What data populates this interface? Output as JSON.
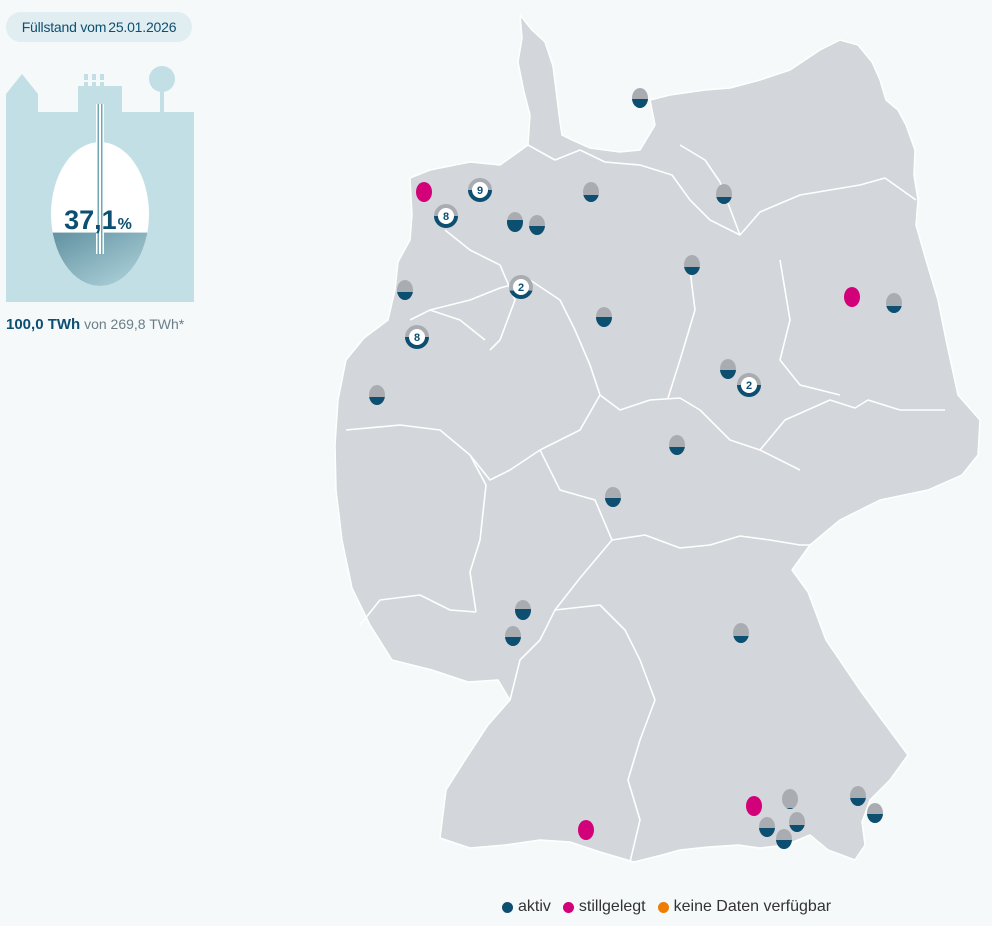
{
  "header": {
    "prefix": "Füllstand vom",
    "date": "25.01.2026"
  },
  "tank": {
    "percent_label": "37,1",
    "percent_unit": "%",
    "fill_fraction": 0.371
  },
  "summary": {
    "current": "100,0 TWh",
    "rest": "von 269,8 TWh*"
  },
  "colors": {
    "active": "#0d4f70",
    "stopped": "#d20079",
    "nodata": "#f07d00",
    "empty": "#a9adb2",
    "land": "#d3d6da",
    "tank": "#c2dfe5"
  },
  "legend": {
    "active": "aktiv",
    "stopped": "stillgelegt",
    "nodata": "keine Daten verfügbar"
  },
  "sites": [
    {
      "status": "active",
      "fill": 0.45
    },
    {
      "status": "stopped"
    },
    {
      "status": "active",
      "fill": 0.5,
      "count": "9"
    },
    {
      "status": "active",
      "fill": 0.5,
      "count": "8"
    },
    {
      "status": "active",
      "fill": 0.6
    },
    {
      "status": "active",
      "fill": 0.45
    },
    {
      "status": "active",
      "fill": 0.35
    },
    {
      "status": "active",
      "fill": 0.35
    },
    {
      "status": "active",
      "fill": 0.4
    },
    {
      "status": "active",
      "fill": 0.35,
      "count": "2"
    },
    {
      "status": "active",
      "fill": 0.4
    },
    {
      "status": "active",
      "fill": 0.5,
      "count": "8"
    },
    {
      "status": "active",
      "fill": 0.5
    },
    {
      "status": "stopped"
    },
    {
      "status": "active",
      "fill": 0.35
    },
    {
      "status": "active",
      "fill": 0.4
    },
    {
      "status": "active",
      "fill": 0.45
    },
    {
      "status": "active",
      "fill": 0.4
    },
    {
      "status": "active",
      "fill": 0.5,
      "count": "2"
    },
    {
      "status": "active",
      "fill": 0.4
    },
    {
      "status": "active",
      "fill": 0.55
    },
    {
      "status": "active",
      "fill": 0.45
    },
    {
      "status": "active",
      "fill": 0.35
    },
    {
      "status": "stopped"
    },
    {
      "status": "stopped"
    },
    {
      "status": "active",
      "fill": 0.05
    },
    {
      "status": "active",
      "fill": 0.45
    },
    {
      "status": "active",
      "fill": 0.35
    },
    {
      "status": "active",
      "fill": 0.45
    },
    {
      "status": "active",
      "fill": 0.4
    },
    {
      "status": "active",
      "fill": 0.45
    },
    {
      "status": "active",
      "fill": 0.45
    }
  ]
}
